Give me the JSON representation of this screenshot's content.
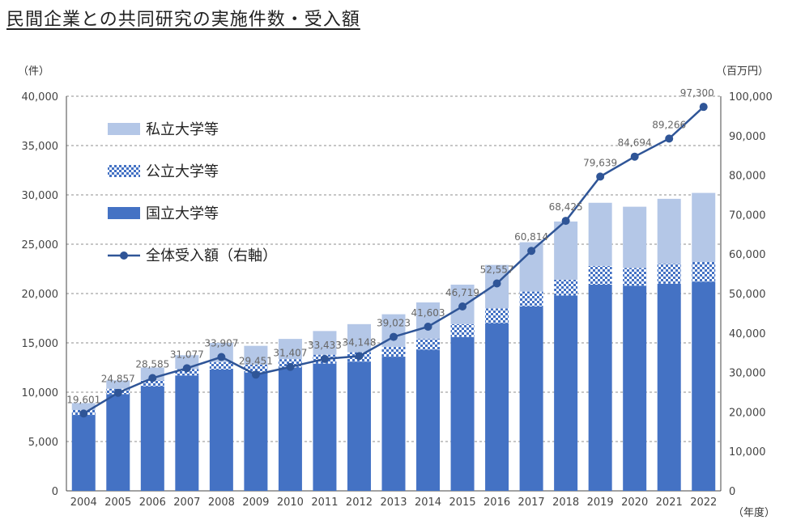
{
  "title": "民間企業との共同研究の実施件数・受入額",
  "chart_data": {
    "type": "bar",
    "categories": [
      "2004",
      "2005",
      "2006",
      "2007",
      "2008",
      "2009",
      "2010",
      "2011",
      "2012",
      "2013",
      "2014",
      "2015",
      "2016",
      "2017",
      "2018",
      "2019",
      "2020",
      "2021",
      "2022"
    ],
    "y_left_unit": "（件）",
    "y_right_unit": "（百万円）",
    "x_unit": "（年度）",
    "ylim_left": [
      0,
      40000
    ],
    "ylim_right": [
      0,
      100000
    ],
    "left_ticks": [
      "0",
      "5,000",
      "10,000",
      "15,000",
      "20,000",
      "25,000",
      "30,000",
      "35,000",
      "40,000"
    ],
    "right_ticks": [
      "0",
      "10,000",
      "20,000",
      "30,000",
      "40,000",
      "50,000",
      "60,000",
      "70,000",
      "80,000",
      "90,000",
      "100,000"
    ],
    "stacked": true,
    "series": [
      {
        "name": "国立大学等",
        "color": "#4472c4",
        "pattern": "solid",
        "values": [
          7700,
          9800,
          10600,
          11700,
          12300,
          12000,
          12500,
          12900,
          13100,
          13600,
          14300,
          15600,
          17000,
          18700,
          19800,
          20900,
          20800,
          21000,
          21200
        ]
      },
      {
        "name": "公立大学等",
        "color": "#4472c4",
        "pattern": "checker",
        "values": [
          500,
          550,
          600,
          650,
          750,
          800,
          850,
          900,
          950,
          1000,
          1100,
          1300,
          1500,
          1500,
          1600,
          1900,
          1800,
          2000,
          2000
        ]
      },
      {
        "name": "私立大学等",
        "color": "#b4c7e7",
        "pattern": "solid",
        "values": [
          700,
          850,
          1300,
          1400,
          1950,
          1900,
          2050,
          2400,
          2850,
          3300,
          3700,
          4000,
          4400,
          5000,
          5900,
          6400,
          6200,
          6600,
          7000
        ]
      },
      {
        "name": "全体受入額（右軸）",
        "type": "line",
        "axis": "right",
        "color": "#2f5597",
        "values": [
          19601,
          24857,
          28585,
          31077,
          33907,
          29451,
          31407,
          33433,
          34148,
          39023,
          41603,
          46719,
          52557,
          60814,
          68425,
          79639,
          84694,
          89266,
          97300
        ],
        "labels": [
          "19,601",
          "24,857",
          "28,585",
          "31,077",
          "33,907",
          "29,451",
          "31,407",
          "33,433",
          "34,148",
          "39,023",
          "41,603",
          "46,719",
          "52,557",
          "60,814",
          "68,425",
          "79,639",
          "84,694",
          "89,266",
          "97,300"
        ]
      }
    ],
    "legend_position": "top-left",
    "grid": true
  }
}
